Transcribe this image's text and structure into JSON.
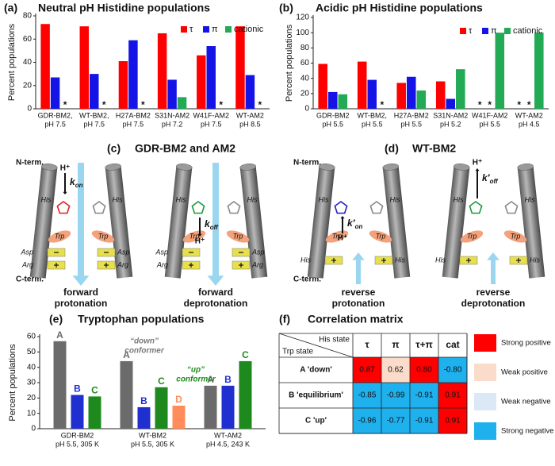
{
  "chart_data": [
    {
      "type": "bar",
      "panel": "(a)",
      "title": "Neutral pH Histidine populations",
      "y_label": "Percent populations",
      "categories": [
        [
          "GDR-BM2,",
          "pH 7.5"
        ],
        [
          "WT-BM2,",
          "pH 7.5"
        ],
        [
          "H27A-BM2",
          "pH 7.5"
        ],
        [
          "S31N-AM2",
          "pH 7.2"
        ],
        [
          "W41F-AM2",
          "pH 7.5"
        ],
        [
          "WT-AM2",
          "pH 8.5"
        ]
      ],
      "series": [
        {
          "name": "τ",
          "color": "#ff0000",
          "values": [
            73,
            71,
            41,
            65,
            46,
            71
          ]
        },
        {
          "name": "π",
          "color": "#1414e6",
          "values": [
            27,
            30,
            59,
            25,
            54,
            29
          ]
        },
        {
          "name": "cationic",
          "color": "#22aa55",
          "values": [
            null,
            null,
            null,
            10,
            null,
            null
          ],
          "value_labels": [
            "*",
            "*",
            "*",
            null,
            "*",
            "*"
          ]
        }
      ],
      "ylim": [
        0,
        80
      ],
      "yticks": [
        0,
        20,
        40,
        60,
        80
      ],
      "legend": "top-right"
    },
    {
      "type": "bar",
      "panel": "(b)",
      "title": "Acidic pH Histidine populations",
      "y_label": "Percent populations",
      "categories": [
        [
          "GDR-BM2",
          "pH 5.5"
        ],
        [
          "WT-BM2,",
          "pH 5.5"
        ],
        [
          "H27A-BM2",
          "pH 5.5"
        ],
        [
          "S31N-AM2",
          "pH 5.2"
        ],
        [
          "W41F-AM2",
          "pH 5.5"
        ],
        [
          "WT-AM2",
          "pH 4.5"
        ]
      ],
      "series": [
        {
          "name": "τ",
          "color": "#ff0000",
          "values": [
            59,
            62,
            34,
            36,
            null,
            null
          ],
          "value_labels": [
            null,
            null,
            null,
            null,
            "*",
            "*"
          ]
        },
        {
          "name": "π",
          "color": "#1414e6",
          "values": [
            22,
            38,
            42,
            13,
            null,
            null
          ],
          "value_labels": [
            null,
            null,
            null,
            null,
            "*",
            "*"
          ]
        },
        {
          "name": "cationic",
          "color": "#22aa55",
          "values": [
            19,
            null,
            24,
            52,
            100,
            100
          ],
          "value_labels": [
            null,
            "*",
            null,
            null,
            null,
            null
          ]
        }
      ],
      "ylim": [
        0,
        120
      ],
      "yticks": [
        0,
        20,
        40,
        60,
        80,
        100,
        120
      ],
      "legend": "top-right"
    },
    {
      "type": "bar",
      "panel": "(e)",
      "title": "Tryptophan populations",
      "y_label": "Percent populations",
      "categories": [
        [
          "GDR-BM2",
          "pH 5.5, 305 K"
        ],
        [
          "WT-BM2",
          "pH 5.5, 305 K"
        ],
        [
          "WT-AM2",
          "pH 4.5, 243 K"
        ]
      ],
      "series": [
        {
          "name": "A",
          "color": "#6b6b6b",
          "values": [
            57,
            44,
            28
          ]
        },
        {
          "name": "B",
          "color": "#1f2fd0",
          "values": [
            22,
            14,
            28
          ]
        },
        {
          "name": "C",
          "color": "#1e8a1e",
          "values": [
            21,
            27,
            44
          ]
        },
        {
          "name": "D",
          "color": "#ff8c5a",
          "values": [
            null,
            15,
            null
          ]
        }
      ],
      "ylim": [
        0,
        60
      ],
      "yticks": [
        0,
        10,
        20,
        30,
        40,
        50,
        60
      ],
      "series_name_labels": true,
      "annotations": [
        {
          "lines": [
            "“down”",
            "conformer"
          ],
          "color": "#7a7a7a"
        },
        {
          "lines": [
            "“up”",
            "conformer"
          ],
          "color": "#1e8a1e"
        }
      ]
    }
  ],
  "diagram_c": {
    "panel": "(c)",
    "title": "GDR-BM2 and AM2",
    "n_term": "N-term.",
    "c_term": "C-term.",
    "his": "His",
    "trp": "Trp",
    "asp": "Asp",
    "arg": "Arg",
    "proton": "H⁺",
    "rate_symbol": "k",
    "rate_subscripts": [
      "on",
      "off"
    ],
    "captions": [
      [
        "forward",
        "protonation"
      ],
      [
        "forward",
        "deprotonation"
      ]
    ]
  },
  "diagram_d": {
    "panel": "(d)",
    "title": "WT-BM2",
    "n_term": "N-term.",
    "c_term": "C-term.",
    "his": "His",
    "trp": "Trp",
    "proton": "H⁺",
    "rate_symbol": "k′",
    "rate_subscripts": [
      "on",
      "off"
    ],
    "captions": [
      [
        "reverse",
        "protonation"
      ],
      [
        "reverse",
        "deprotonation"
      ]
    ]
  },
  "table_f": {
    "panel": "(f)",
    "title": "Correlation matrix",
    "corner": [
      "His state",
      "Trp state"
    ],
    "columns": [
      "τ",
      "π",
      "τ+π",
      "cat"
    ],
    "rows": [
      {
        "label": "A 'down'",
        "cells": [
          "0.87",
          "0.62",
          "0.80",
          "-0.80"
        ],
        "colors": [
          "#ff0000",
          "#fbdccb",
          "#ff0000",
          "#1fb0ee"
        ]
      },
      {
        "label": "B 'equilibrium'",
        "cells": [
          "-0.85",
          "-0.99",
          "-0.91",
          "0.91"
        ],
        "colors": [
          "#1fb0ee",
          "#1fb0ee",
          "#1fb0ee",
          "#ff0000"
        ]
      },
      {
        "label": "C 'up'",
        "cells": [
          "-0.96",
          "-0.77",
          "-0.91",
          "0.91"
        ],
        "colors": [
          "#1fb0ee",
          "#1fb0ee",
          "#1fb0ee",
          "#ff0000"
        ]
      }
    ],
    "legend": [
      {
        "label": "Strong positive",
        "color": "#ff0000"
      },
      {
        "label": "Weak positive",
        "color": "#fbdccb"
      },
      {
        "label": "Weak negative",
        "color": "#dbe8f5"
      },
      {
        "label": "Strong negative",
        "color": "#1fb0ee"
      }
    ]
  }
}
